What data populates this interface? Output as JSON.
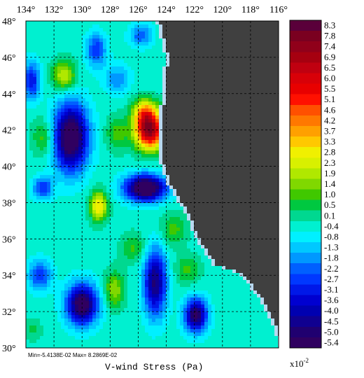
{
  "map": {
    "title": "V-wind Stress (Pa)",
    "stats": "Min=-5.4138E-02   Max= 8.2869E-02",
    "scale_note": "x10",
    "scale_exponent": "-2",
    "lon_range": [
      134,
      116
    ],
    "lat_range": [
      30,
      48
    ],
    "lon_ticks": [
      "134°",
      "132°",
      "130°",
      "128°",
      "126°",
      "124°",
      "122°",
      "120°",
      "118°",
      "116°"
    ],
    "lat_ticks": [
      "48°",
      "46°",
      "44°",
      "42°",
      "40°",
      "38°",
      "36°",
      "34°",
      "32°",
      "30°"
    ],
    "land_color": "#404040",
    "coast_color": "#b8d8f0",
    "grid": true
  },
  "colorbar": {
    "labels": [
      "8.3",
      "7.8",
      "7.4",
      "6.9",
      "6.5",
      "6.0",
      "5.5",
      "5.1",
      "4.6",
      "4.2",
      "3.7",
      "3.3",
      "2.8",
      "2.3",
      "1.9",
      "1.4",
      "1.0",
      "0.5",
      "0.1",
      "-0.4",
      "-0.8",
      "-1.3",
      "-1.8",
      "-2.2",
      "-2.7",
      "-3.1",
      "-3.6",
      "-4.0",
      "-4.5",
      "-5.0",
      "-5.4"
    ],
    "colors": [
      "#5a003a",
      "#7a0020",
      "#90001a",
      "#a60010",
      "#c00010",
      "#d80008",
      "#e80000",
      "#ff1000",
      "#ff5000",
      "#ff7800",
      "#ffa000",
      "#ffc800",
      "#f0f000",
      "#d8f000",
      "#b0e800",
      "#80d800",
      "#40c800",
      "#00c840",
      "#00d890",
      "#00f0d0",
      "#00f0ff",
      "#00c8ff",
      "#0098ff",
      "#0060ff",
      "#0038ff",
      "#0018e8",
      "#0000d0",
      "#0000b0",
      "#100090",
      "#200070",
      "#300060"
    ]
  }
}
